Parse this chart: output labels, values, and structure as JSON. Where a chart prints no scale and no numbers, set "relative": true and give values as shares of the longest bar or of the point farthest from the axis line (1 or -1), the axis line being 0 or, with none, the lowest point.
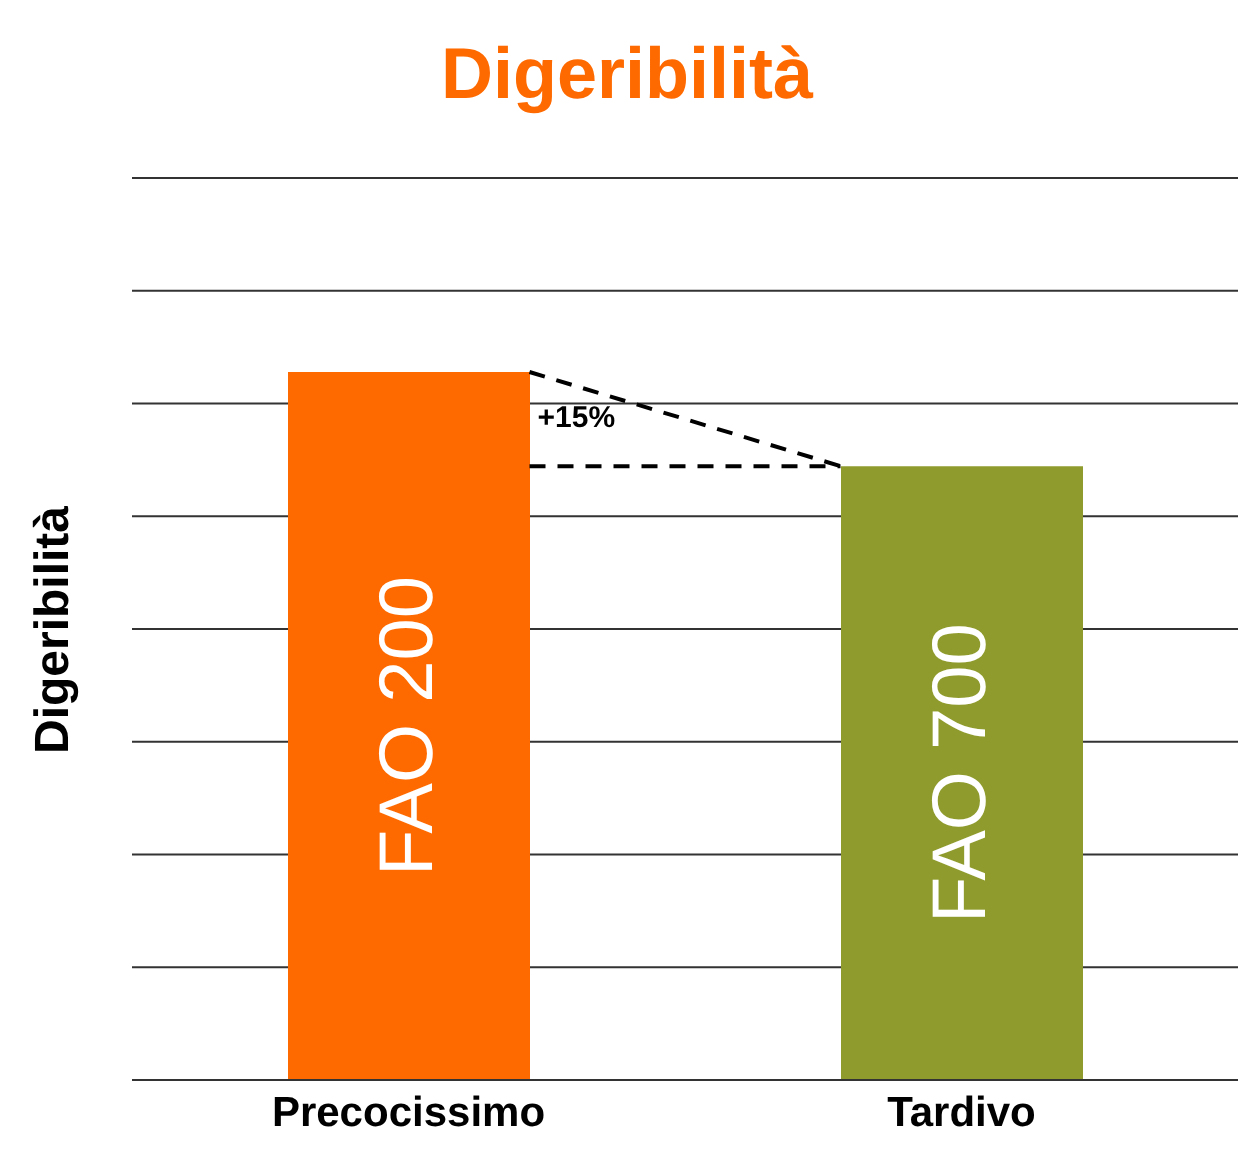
{
  "chart_data": {
    "type": "bar",
    "title": "Digeribilità",
    "ylabel": "Digeribilità",
    "relative": true,
    "grid": "y",
    "categories": [
      "Precocissimo",
      "Tardivo"
    ],
    "values": [
      1,
      0.867
    ],
    "colors": [
      "#ff6a00",
      "#8f9b2c"
    ],
    "annotations": [
      "FAO 200",
      "FAO 700",
      "+15%"
    ]
  }
}
